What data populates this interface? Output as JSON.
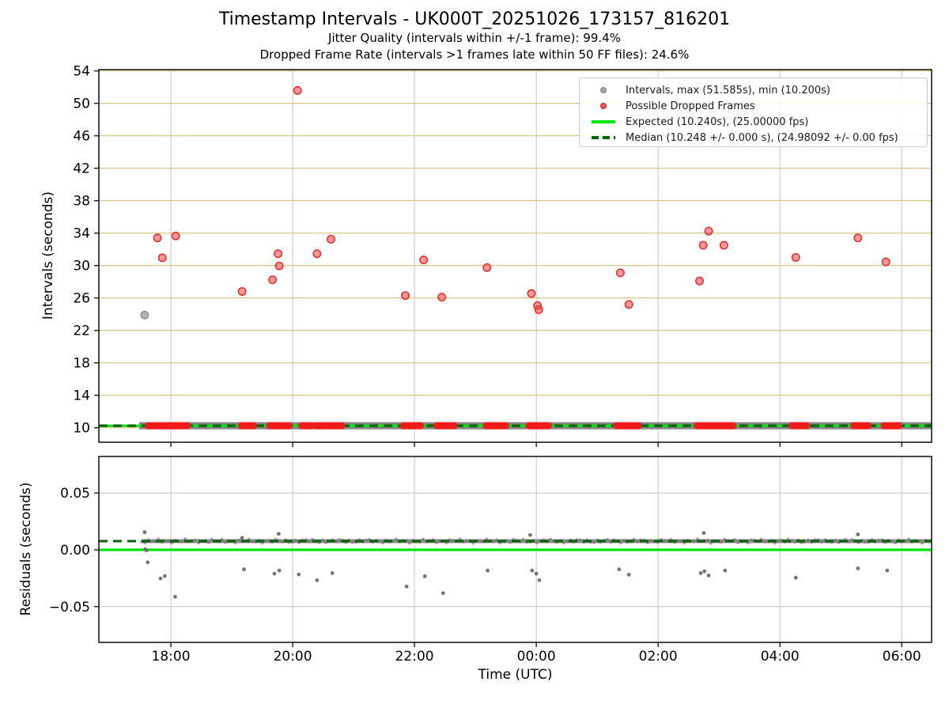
{
  "figure": {
    "title": "Timestamp Intervals - UK000T_20251026_173157_816201",
    "subtitle1": "Jitter Quality (intervals within +/-1 frame): 99.4%",
    "subtitle2": "Dropped Frame Rate (intervals >1 frames late within 50 FF files): 24.6%",
    "xlabel": "Time (UTC)"
  },
  "legend": {
    "items": [
      {
        "marker": "dot",
        "color": "#a8a8a8",
        "edge": "#8f8f8f",
        "label": "Intervals, max (51.585s), min (10.200s)"
      },
      {
        "marker": "dot",
        "color": "#f15e5e",
        "edge": "#e03838",
        "label": "Possible Dropped Frames"
      },
      {
        "marker": "solid-line",
        "color": "#00e60b",
        "edge": "#00e60b",
        "label": "Expected (10.240s), (25.00000 fps)"
      },
      {
        "marker": "dashed-line",
        "color": "#006400",
        "edge": "#006400",
        "label": "Median (10.248 +/- 0.000 s), (24.98092 +/- 0.00 fps)"
      }
    ]
  },
  "colors": {
    "grid_tan": "#d9c588",
    "grid_gray": "#cdcdcd",
    "spine": "#1b1b1b",
    "expected": "#00e60b",
    "median": "#006400",
    "red_fill": "#ff4646",
    "red_edge": "#e03333",
    "red_solid": "#f21b1b",
    "gray_fill": "#8c8c8c",
    "band_gray": "#7f7f7f",
    "outlier_gray": "#6e6e6e"
  },
  "chart_data": [
    {
      "type": "scatter",
      "name": "intervals-vs-time",
      "ylabel": "Intervals (seconds)",
      "xlim": [
        16.818,
        30.49
      ],
      "ylim": [
        8.21,
        54.16
      ],
      "yticks": [
        10,
        14,
        18,
        22,
        26,
        30,
        34,
        38,
        42,
        46,
        50,
        54
      ],
      "xticks": [
        {
          "t": 18,
          "label": "18:00"
        },
        {
          "t": 20,
          "label": "20:00"
        },
        {
          "t": 22,
          "label": "22:00"
        },
        {
          "t": 24,
          "label": "00:00"
        },
        {
          "t": 26,
          "label": "02:00"
        },
        {
          "t": 28,
          "label": "04:00"
        },
        {
          "t": 30,
          "label": "06:00"
        }
      ],
      "expected_value_s": 10.24,
      "median_value_s": 10.248,
      "gray_points": [
        [
          17.57,
          23.9
        ]
      ],
      "red_points": [
        [
          17.78,
          33.4
        ],
        [
          17.86,
          30.95
        ],
        [
          18.08,
          33.65
        ],
        [
          19.17,
          26.8
        ],
        [
          19.67,
          28.25
        ],
        [
          19.76,
          31.45
        ],
        [
          19.78,
          29.95
        ],
        [
          20.08,
          51.585
        ],
        [
          20.4,
          31.45
        ],
        [
          20.63,
          33.25
        ],
        [
          21.85,
          26.3
        ],
        [
          22.15,
          30.7
        ],
        [
          22.45,
          26.1
        ],
        [
          23.19,
          29.75
        ],
        [
          23.92,
          26.55
        ],
        [
          24.02,
          25.05
        ],
        [
          24.04,
          24.55
        ],
        [
          25.38,
          29.1
        ],
        [
          25.52,
          25.2
        ],
        [
          26.68,
          28.1
        ],
        [
          26.74,
          32.5
        ],
        [
          26.83,
          34.25
        ],
        [
          27.08,
          32.5
        ],
        [
          28.26,
          31.0
        ],
        [
          29.28,
          33.4
        ],
        [
          29.74,
          30.45
        ]
      ],
      "baseline_band": {
        "start": 17.48,
        "end": 30.49,
        "value": 10.248
      },
      "baseline_red_clusters": [
        [
          17.63,
          18.29
        ],
        [
          19.16,
          19.36
        ],
        [
          19.62,
          19.97
        ],
        [
          20.15,
          20.33
        ],
        [
          20.39,
          20.57
        ],
        [
          20.61,
          20.81
        ],
        [
          21.82,
          22.13
        ],
        [
          22.37,
          22.65
        ],
        [
          23.18,
          23.53
        ],
        [
          23.88,
          24.23
        ],
        [
          25.32,
          25.7
        ],
        [
          26.64,
          27.04
        ],
        [
          27.07,
          27.26
        ],
        [
          28.2,
          28.46
        ],
        [
          29.21,
          29.47
        ],
        [
          29.71,
          29.96
        ]
      ]
    },
    {
      "type": "scatter",
      "name": "residuals-vs-time",
      "ylabel": "Residuals (seconds)",
      "xlim": [
        16.818,
        30.49
      ],
      "ylim": [
        -0.0815,
        0.0822
      ],
      "yticks": [
        {
          "v": 0.05,
          "label": "0.05"
        },
        {
          "v": 0.0,
          "label": "0.00"
        },
        {
          "v": -0.05,
          "label": "−0.05"
        }
      ],
      "expected_value": 0.0,
      "median_value": 0.0077,
      "band": {
        "start": 17.52,
        "end": 30.49,
        "value": 0.0077
      },
      "outliers": [
        [
          17.57,
          0.0155
        ],
        [
          17.58,
          0.0005
        ],
        [
          17.6,
          -0.0005
        ],
        [
          17.62,
          -0.011
        ],
        [
          17.83,
          -0.0252
        ],
        [
          17.9,
          -0.0231
        ],
        [
          18.07,
          -0.0413
        ],
        [
          19.17,
          0.0105
        ],
        [
          19.2,
          -0.0172
        ],
        [
          19.7,
          -0.021
        ],
        [
          19.77,
          0.0141
        ],
        [
          19.78,
          -0.0182
        ],
        [
          20.1,
          -0.0217
        ],
        [
          20.4,
          -0.0268
        ],
        [
          20.65,
          -0.0205
        ],
        [
          21.87,
          -0.0323
        ],
        [
          22.17,
          -0.0233
        ],
        [
          22.47,
          -0.0382
        ],
        [
          23.2,
          -0.0182
        ],
        [
          23.9,
          0.013
        ],
        [
          23.93,
          -0.0182
        ],
        [
          24.0,
          -0.021
        ],
        [
          24.05,
          -0.0268
        ],
        [
          25.36,
          -0.0172
        ],
        [
          25.52,
          -0.0219
        ],
        [
          26.7,
          -0.0205
        ],
        [
          26.75,
          0.0148
        ],
        [
          26.76,
          -0.0189
        ],
        [
          26.83,
          -0.0226
        ],
        [
          27.1,
          -0.0182
        ],
        [
          28.26,
          -0.0245
        ],
        [
          29.28,
          -0.0163
        ],
        [
          29.28,
          0.0136
        ],
        [
          29.76,
          -0.0182
        ]
      ]
    }
  ]
}
